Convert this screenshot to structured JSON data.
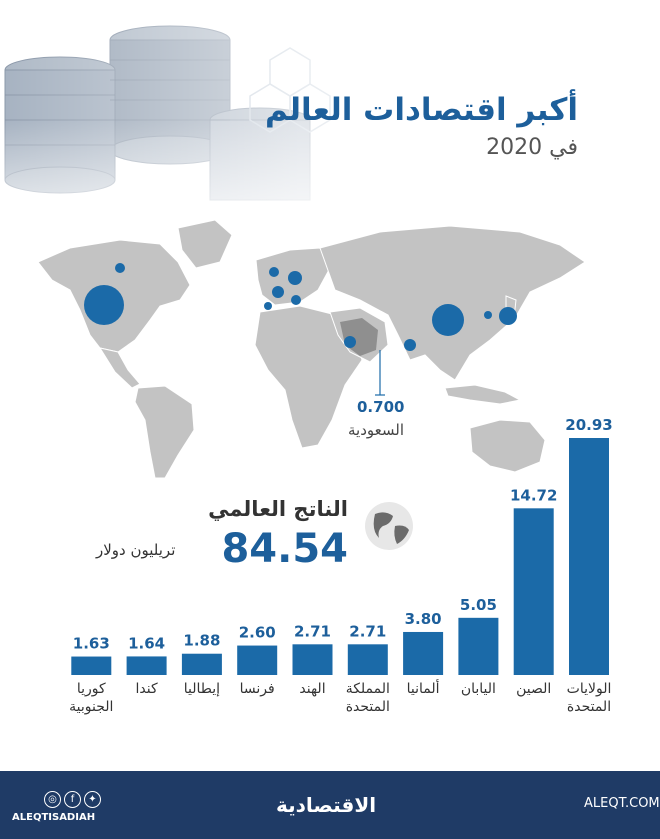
{
  "header": {
    "title": "أكبر اقتصادات العالم",
    "subtitle": "في 2020"
  },
  "saudi": {
    "value": "0.700",
    "name": "السعودية"
  },
  "world": {
    "label": "الناتج العالمي",
    "value": "84.54"
  },
  "unit_label": "تريليون دولار",
  "footer": {
    "brand": "الاقتصادية",
    "url": "ALEQT.COM",
    "logo_text": "ALEQTISADIAH"
  },
  "colors": {
    "bar": "#1b6aa8",
    "accent": "#1d5f9b",
    "footer": "#1f3b66",
    "map": "#bfbfbf"
  },
  "chart_data": {
    "type": "bar",
    "categories": [
      "الولايات المتحدة",
      "الصين",
      "اليابان",
      "ألمانيا",
      "المملكة المتحدة",
      "الهند",
      "فرنسا",
      "إيطاليا",
      "كندا",
      "كوريا الجنوبية"
    ],
    "values": [
      20.93,
      14.72,
      5.05,
      3.8,
      2.71,
      2.71,
      2.6,
      1.88,
      1.64,
      1.63
    ],
    "value_labels": [
      "20.93",
      "14.72",
      "5.05",
      "3.80",
      "2.71",
      "2.71",
      "2.60",
      "1.88",
      "1.64",
      "1.63"
    ],
    "ylabel": "تريليون دولار",
    "ylim": [
      0,
      21
    ],
    "grid": false
  }
}
